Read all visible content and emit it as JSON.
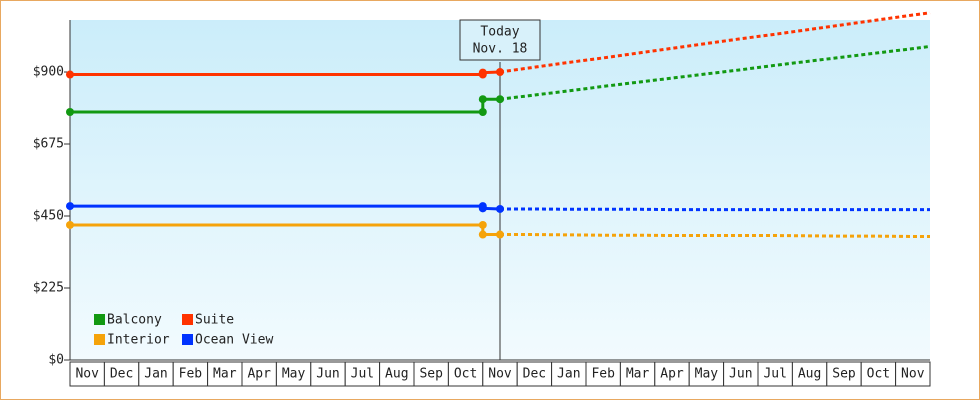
{
  "chart_data": {
    "type": "line",
    "categories": [
      "Nov",
      "Dec",
      "Jan",
      "Feb",
      "Mar",
      "Apr",
      "May",
      "Jun",
      "Jul",
      "Aug",
      "Sep",
      "Oct",
      "Nov",
      "Dec",
      "Jan",
      "Feb",
      "Mar",
      "Apr",
      "May",
      "Jun",
      "Jul",
      "Aug",
      "Sep",
      "Oct",
      "Nov"
    ],
    "annotation": [
      "Today",
      "Nov. 18"
    ],
    "x": [
      -0.5,
      11.5,
      11.5,
      12
    ],
    "forecast_x": [
      12,
      13,
      14,
      15,
      16,
      17,
      18,
      19,
      20,
      21,
      22,
      23,
      24,
      24.5
    ],
    "series": [
      {
        "name": "Balcony",
        "color": "#129912",
        "values": [
          775,
          775,
          815,
          815
        ],
        "forecast": [
          815,
          828,
          841,
          855,
          868,
          881,
          894,
          907,
          921,
          934,
          947,
          960,
          973,
          980
        ]
      },
      {
        "name": "Suite",
        "color": "#ff3300",
        "values": [
          892,
          892,
          898,
          900
        ],
        "forecast": [
          900,
          915,
          930,
          944,
          959,
          974,
          989,
          1004,
          1018,
          1033,
          1048,
          1063,
          1078,
          1085
        ]
      },
      {
        "name": "Interior",
        "color": "#f5a30a",
        "values": [
          422,
          422,
          392,
          392
        ],
        "forecast": [
          392,
          392,
          391,
          390,
          390,
          389,
          389,
          389,
          389,
          388,
          387,
          387,
          386,
          386
        ]
      },
      {
        "name": "Ocean View",
        "color": "#0033ff",
        "values": [
          481,
          481,
          474,
          472
        ],
        "forecast": [
          472,
          472,
          471,
          471,
          471,
          470,
          470,
          470,
          470,
          470,
          470,
          470,
          470,
          470
        ]
      }
    ],
    "xlim": [
      -0.5,
      24.5
    ],
    "ylim": [
      0,
      1062.5
    ],
    "yticks": [
      {
        "value": 0,
        "label": "$0"
      },
      {
        "value": 225,
        "label": "$225"
      },
      {
        "value": 450,
        "label": "$450"
      },
      {
        "value": 675,
        "label": "$675"
      },
      {
        "value": 900,
        "label": "$900"
      }
    ]
  }
}
